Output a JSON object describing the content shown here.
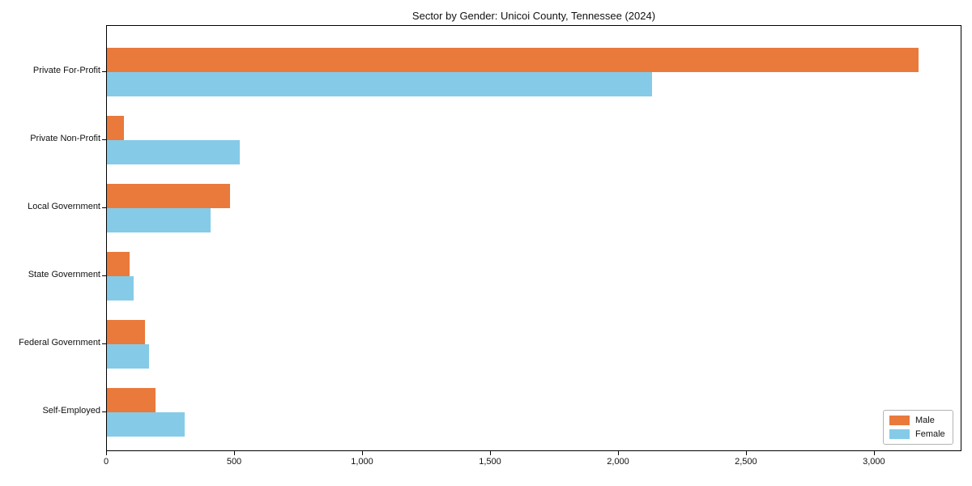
{
  "chart_data": {
    "type": "bar",
    "orientation": "horizontal",
    "title": "Sector by Gender: Unicoi County, Tennessee (2024)",
    "categories": [
      "Private For-Profit",
      "Private Non-Profit",
      "Local Government",
      "State Government",
      "Federal Government",
      "Self-Employed"
    ],
    "series": [
      {
        "name": "Male",
        "color": "#e97a3c",
        "values": [
          3170,
          65,
          480,
          90,
          150,
          190
        ]
      },
      {
        "name": "Female",
        "color": "#85cbe8",
        "values": [
          2130,
          520,
          405,
          105,
          165,
          305
        ]
      }
    ],
    "xlabel": "",
    "ylabel": "",
    "xlim": [
      0,
      3342
    ],
    "x_ticks": [
      0,
      500,
      1000,
      1500,
      2000,
      2500,
      3000
    ],
    "x_tick_labels": [
      "0",
      "500",
      "1,000",
      "1,500",
      "2,000",
      "2,500",
      "3,000"
    ],
    "grid": false,
    "legend_position": "lower right",
    "axis_color": "#000000",
    "background_color": "#ffffff"
  }
}
